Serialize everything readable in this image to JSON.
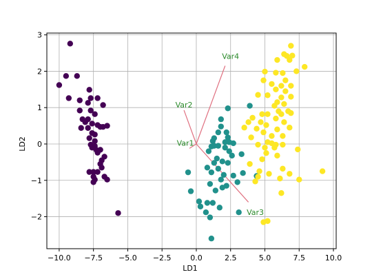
{
  "chart_data": {
    "type": "scatter",
    "title": "",
    "xlabel": "LD1",
    "ylabel": "LD2",
    "xlim": [
      -10.9,
      10.2
    ],
    "ylim": [
      -2.88,
      3.05
    ],
    "xticks": [
      -10.0,
      -7.5,
      -5.0,
      -2.5,
      0.0,
      2.5,
      5.0,
      7.5,
      10.0
    ],
    "xtick_labels": [
      "−10.0",
      "−7.5",
      "−5.0",
      "−2.5",
      "0.0",
      "2.5",
      "5.0",
      "7.5",
      "10.0"
    ],
    "yticks": [
      -2,
      -1,
      0,
      1,
      2,
      3
    ],
    "ytick_labels": [
      "−2",
      "−1",
      "0",
      "1",
      "2",
      "3"
    ],
    "grid": true,
    "legend": null,
    "series": [
      {
        "color": "#440154",
        "points": [
          [
            -9.2,
            2.76
          ],
          [
            -9.5,
            1.87
          ],
          [
            -8.7,
            1.87
          ],
          [
            -10.0,
            1.62
          ],
          [
            -9.3,
            1.26
          ],
          [
            -8.5,
            1.2
          ],
          [
            -7.8,
            1.49
          ],
          [
            -7.7,
            1.26
          ],
          [
            -7.2,
            1.26
          ],
          [
            -7.9,
            1.13
          ],
          [
            -6.8,
            1.07
          ],
          [
            -8.5,
            0.92
          ],
          [
            -7.7,
            0.92
          ],
          [
            -7.4,
            0.82
          ],
          [
            -8.3,
            0.68
          ],
          [
            -7.9,
            0.68
          ],
          [
            -8.1,
            0.6
          ],
          [
            -7.6,
            0.56
          ],
          [
            -7.2,
            0.52
          ],
          [
            -6.5,
            0.5
          ],
          [
            -8.4,
            0.44
          ],
          [
            -7.9,
            0.44
          ],
          [
            -7.0,
            0.47
          ],
          [
            -6.8,
            0.47
          ],
          [
            -7.6,
            0.3
          ],
          [
            -7.4,
            0.26
          ],
          [
            -7.8,
            0.16
          ],
          [
            -7.4,
            0.08
          ],
          [
            -7.7,
            -0.02
          ],
          [
            -7.4,
            -0.06
          ],
          [
            -7.6,
            -0.1
          ],
          [
            -7.3,
            -0.16
          ],
          [
            -7.0,
            -0.16
          ],
          [
            -7.2,
            -0.24
          ],
          [
            -6.7,
            -0.35
          ],
          [
            -6.9,
            -0.45
          ],
          [
            -7.0,
            -0.55
          ],
          [
            -6.9,
            -0.65
          ],
          [
            -7.8,
            -0.77
          ],
          [
            -7.5,
            -0.77
          ],
          [
            -7.2,
            -0.77
          ],
          [
            -7.5,
            -0.9
          ],
          [
            -6.7,
            -0.9
          ],
          [
            -7.4,
            -0.98
          ],
          [
            -6.5,
            -0.98
          ],
          [
            -7.5,
            -1.05
          ],
          [
            -5.7,
            -1.9
          ]
        ]
      },
      {
        "color": "#21918c",
        "points": [
          [
            2.3,
            0.98
          ],
          [
            1.8,
            0.68
          ],
          [
            3.9,
            1.05
          ],
          [
            1.8,
            0.48
          ],
          [
            1.6,
            0.32
          ],
          [
            2.2,
            0.32
          ],
          [
            2.3,
            0.18
          ],
          [
            1.3,
            0.16
          ],
          [
            1.2,
            0.08
          ],
          [
            2.1,
            0.05
          ],
          [
            2.4,
            0.05
          ],
          [
            2.7,
            0.02
          ],
          [
            1.1,
            -0.07
          ],
          [
            1.3,
            -0.05
          ],
          [
            1.6,
            -0.05
          ],
          [
            2.1,
            -0.1
          ],
          [
            2.4,
            -0.2
          ],
          [
            0.9,
            -0.2
          ],
          [
            1.5,
            -0.4
          ],
          [
            2.6,
            -0.32
          ],
          [
            3.3,
            -0.28
          ],
          [
            1.9,
            -0.48
          ],
          [
            1.3,
            -0.52
          ],
          [
            2.3,
            -0.52
          ],
          [
            0.8,
            -0.65
          ],
          [
            1.6,
            -0.68
          ],
          [
            1.1,
            -0.78
          ],
          [
            3.4,
            -0.8
          ],
          [
            2.0,
            -0.85
          ],
          [
            2.7,
            -0.87
          ],
          [
            4.4,
            -0.88
          ],
          [
            -0.6,
            -0.78
          ],
          [
            1.8,
            -0.98
          ],
          [
            3.0,
            -1.05
          ],
          [
            1.0,
            -1.1
          ],
          [
            2.2,
            -1.15
          ],
          [
            1.9,
            -1.2
          ],
          [
            1.4,
            -1.28
          ],
          [
            -0.4,
            -1.3
          ],
          [
            0.2,
            -1.58
          ],
          [
            0.8,
            -1.62
          ],
          [
            1.2,
            -1.62
          ],
          [
            0.3,
            -1.72
          ],
          [
            1.7,
            -1.75
          ],
          [
            0.7,
            -1.88
          ],
          [
            3.1,
            -1.88
          ],
          [
            1.0,
            -2.02
          ],
          [
            1.1,
            -2.6
          ]
        ]
      },
      {
        "color": "#fde725",
        "points": [
          [
            6.9,
            2.7
          ],
          [
            6.4,
            2.47
          ],
          [
            7.0,
            2.43
          ],
          [
            6.6,
            2.42
          ],
          [
            5.9,
            2.31
          ],
          [
            6.8,
            2.31
          ],
          [
            7.9,
            2.12
          ],
          [
            7.3,
            2.0
          ],
          [
            6.3,
            1.95
          ],
          [
            5.0,
            1.99
          ],
          [
            5.8,
            1.96
          ],
          [
            4.9,
            1.75
          ],
          [
            6.5,
            1.75
          ],
          [
            5.5,
            1.65
          ],
          [
            6.2,
            1.6
          ],
          [
            6.9,
            1.6
          ],
          [
            5.8,
            1.5
          ],
          [
            6.5,
            1.45
          ],
          [
            4.5,
            1.35
          ],
          [
            5.2,
            1.34
          ],
          [
            6.9,
            1.3
          ],
          [
            6.2,
            1.28
          ],
          [
            5.9,
            1.15
          ],
          [
            6.4,
            1.1
          ],
          [
            5.7,
            1.05
          ],
          [
            6.0,
            0.9
          ],
          [
            6.7,
            0.9
          ],
          [
            4.8,
            0.82
          ],
          [
            5.2,
            0.82
          ],
          [
            6.2,
            0.82
          ],
          [
            6.9,
            0.85
          ],
          [
            4.1,
            0.72
          ],
          [
            5.8,
            0.7
          ],
          [
            6.4,
            0.6
          ],
          [
            4.7,
            0.6
          ],
          [
            3.8,
            0.6
          ],
          [
            5.1,
            0.52
          ],
          [
            6.8,
            0.45
          ],
          [
            3.5,
            0.45
          ],
          [
            4.4,
            0.42
          ],
          [
            5.9,
            0.4
          ],
          [
            4.9,
            0.32
          ],
          [
            5.5,
            0.22
          ],
          [
            4.0,
            0.18
          ],
          [
            6.3,
            0.22
          ],
          [
            5.2,
            0.05
          ],
          [
            5.5,
            0.02
          ],
          [
            5.8,
            -0.02
          ],
          [
            4.5,
            -0.02
          ],
          [
            6.3,
            -0.02
          ],
          [
            5.7,
            -0.1
          ],
          [
            5.0,
            -0.1
          ],
          [
            7.4,
            -0.15
          ],
          [
            5.1,
            -0.25
          ],
          [
            5.9,
            -0.32
          ],
          [
            4.8,
            -0.42
          ],
          [
            3.9,
            -0.55
          ],
          [
            6.3,
            -0.68
          ],
          [
            4.6,
            -0.75
          ],
          [
            9.2,
            -0.75
          ],
          [
            5.3,
            -0.82
          ],
          [
            6.8,
            -0.82
          ],
          [
            4.5,
            -0.9
          ],
          [
            6.1,
            -0.95
          ],
          [
            7.5,
            -0.98
          ],
          [
            4.3,
            -1.03
          ],
          [
            6.2,
            -1.35
          ],
          [
            5.2,
            -2.12
          ],
          [
            4.9,
            -2.15
          ]
        ]
      }
    ],
    "loadings": [
      {
        "label": "Var1",
        "end": [
          -0.5,
          -0.12
        ],
        "label_at": [
          -0.8,
          0.03
        ]
      },
      {
        "label": "Var2",
        "end": [
          -0.9,
          0.93
        ],
        "label_at": [
          -0.9,
          1.08
        ]
      },
      {
        "label": "Var3",
        "end": [
          3.8,
          -1.6
        ],
        "label_at": [
          4.3,
          -1.88
        ]
      },
      {
        "label": "Var4",
        "end": [
          2.1,
          2.15
        ],
        "label_at": [
          2.5,
          2.42
        ]
      }
    ],
    "loading_color": "#e07080",
    "loading_label_color": "#2a8a2a"
  }
}
